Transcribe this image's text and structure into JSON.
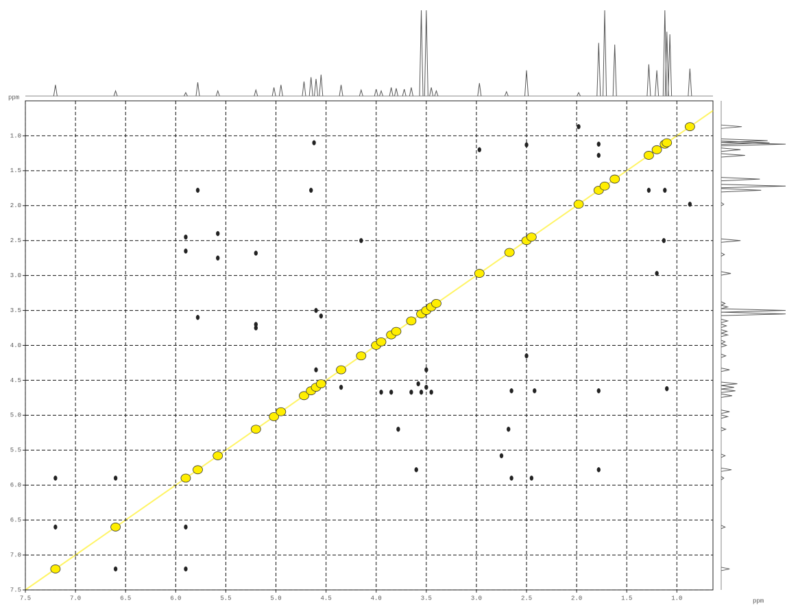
{
  "chart_data": {
    "type": "scatter",
    "xlabel": "ppm",
    "ylabel": "ppm",
    "xlim": [
      7.5,
      0.64
    ],
    "ylim": [
      0.5,
      7.5
    ],
    "y_reversed": true,
    "grid": true,
    "xticks": [
      7.5,
      {
        "value": 7,
        "label": "7.0"
      },
      6.5,
      {
        "value": 6,
        "label": "6.0"
      },
      5.5,
      {
        "value": 5,
        "label": "5.0"
      },
      4.5,
      {
        "value": 4,
        "label": "4.0"
      },
      3.5,
      {
        "value": 3,
        "label": "3.0"
      },
      2.5,
      {
        "value": 2,
        "label": "2.0"
      },
      1.5,
      {
        "value": 1,
        "label": "1.0"
      }
    ],
    "yticks": [
      {
        "value": 1,
        "label": "1.0"
      },
      1.5,
      {
        "value": 2,
        "label": "2.0"
      },
      2.5,
      {
        "value": 3,
        "label": "3.0"
      },
      3.5,
      {
        "value": 4,
        "label": "4.0"
      },
      4.5,
      {
        "value": 5,
        "label": "5.0"
      },
      5.5,
      {
        "value": 6,
        "label": "6.0"
      },
      6.5,
      {
        "value": 7,
        "label": "7.0"
      },
      7.5
    ],
    "series": [
      {
        "color": "#ffee00",
        "x": [
          7.2,
          6.6,
          5.9,
          5.78,
          5.58,
          5.2,
          5.02,
          4.95,
          4.72,
          4.65,
          4.6,
          4.55,
          4.35,
          4.15,
          4.0,
          3.95,
          3.85,
          3.8,
          3.65,
          3.55,
          3.5,
          3.45,
          3.4,
          2.97,
          2.67,
          2.5,
          2.45,
          1.98,
          1.78,
          1.72,
          1.62,
          1.28,
          1.2,
          1.12,
          1.1,
          0.87
        ],
        "values": [
          7.2,
          6.6,
          5.9,
          5.78,
          5.58,
          5.2,
          5.02,
          4.95,
          4.72,
          4.65,
          4.6,
          4.55,
          4.35,
          4.15,
          4.0,
          3.95,
          3.85,
          3.8,
          3.65,
          3.55,
          3.5,
          3.45,
          3.4,
          2.97,
          2.67,
          2.5,
          2.45,
          1.98,
          1.78,
          1.72,
          1.62,
          1.28,
          1.2,
          1.12,
          1.1,
          0.87
        ]
      },
      {
        "color": "#222222",
        "x": [
          7.2,
          6.6,
          7.2,
          5.9,
          6.6,
          5.9,
          5.9,
          2.45,
          5.9,
          2.65,
          5.78,
          1.78,
          5.58,
          2.75,
          5.58,
          5.2,
          2.68,
          5.2,
          5.2,
          4.65,
          1.78,
          4.6,
          3.5,
          4.55,
          3.58,
          4.35,
          4.6,
          4.15,
          3.95,
          3.85,
          3.65,
          3.55,
          3.45,
          3.78,
          2.5,
          2.5,
          1.13,
          2.97,
          1.2,
          1.98,
          0.87,
          1.28,
          1.78,
          1.12,
          1.78,
          2.65,
          2.42,
          3.5,
          5.78,
          3.6,
          4.62,
          1.1
        ],
        "values": [
          6.6,
          7.2,
          5.9,
          7.2,
          5.9,
          6.6,
          2.45,
          5.9,
          2.65,
          5.9,
          1.78,
          5.78,
          2.75,
          5.58,
          2.4,
          2.68,
          5.2,
          3.7,
          3.75,
          1.78,
          4.65,
          3.5,
          4.6,
          3.58,
          4.55,
          4.6,
          4.35,
          2.5,
          4.67,
          4.67,
          4.67,
          4.67,
          4.67,
          5.2,
          4.15,
          1.13,
          2.5,
          1.2,
          2.97,
          0.87,
          1.98,
          1.78,
          1.28,
          1.78,
          1.12,
          4.65,
          4.65,
          4.35,
          3.6,
          5.78,
          1.1,
          4.62
        ]
      }
    ],
    "projection": {
      "color": "#555555",
      "peaks": [
        7.2,
        6.6,
        5.9,
        5.78,
        5.58,
        5.2,
        5.02,
        4.95,
        4.72,
        4.65,
        4.6,
        4.55,
        4.35,
        4.15,
        4.0,
        3.95,
        3.85,
        3.8,
        3.72,
        3.65,
        3.55,
        3.5,
        3.45,
        3.4,
        2.97,
        2.7,
        2.5,
        1.98,
        1.78,
        1.72,
        1.62,
        1.28,
        1.2,
        1.12,
        1.1,
        1.07,
        0.87
      ],
      "heights": [
        0.13,
        0.06,
        0.04,
        0.16,
        0.06,
        0.07,
        0.1,
        0.13,
        0.17,
        0.22,
        0.2,
        0.25,
        0.13,
        0.07,
        0.08,
        0.06,
        0.1,
        0.09,
        0.08,
        0.1,
        1.0,
        1.0,
        0.1,
        0.06,
        0.15,
        0.05,
        0.3,
        0.04,
        0.62,
        1.0,
        0.6,
        0.37,
        0.3,
        1.0,
        0.75,
        0.72,
        0.32
      ]
    }
  }
}
